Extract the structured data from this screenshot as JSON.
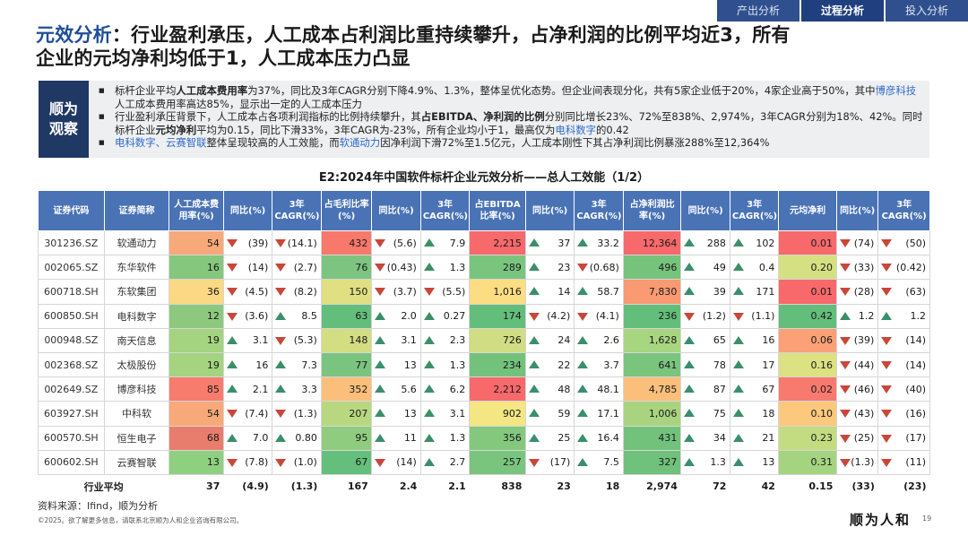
{
  "nav": {
    "tabs": [
      "产出分析",
      "过程分析",
      "投入分析"
    ],
    "active": 1
  },
  "title": {
    "prefix": "元效分析",
    "line1_rest": "：行业盈利承压，人工成本占利润比重持续攀升，占净利润的比例平均近3，所有",
    "line2": "企业的元均净利均低于1，人工成本压力凸显"
  },
  "observation": {
    "label1": "顺为",
    "label2": "观察",
    "b1": {
      "t1": "标杆企业平均",
      "t2": "人工成本费用率",
      "t3": "为37%，同比及3年CAGR分别下降4.9%、1.3%，整体呈优化态势。但企业间表现分化，共有5家企业低于20%，4家企业高于50%，其中",
      "t4": "博彦科技",
      "t5": "人工成本费用率高达85%，显示出一定的人工成本压力"
    },
    "b2": {
      "t1": "行业盈利承压背景下，人工成本占各项利润指标的比例持续攀升，其",
      "t2": "占EBITDA、净利润的比例",
      "t3": "分别同比增长23%、72%至838%、2,974%，3年CAGR分别为18%、42%。同时标杆企业",
      "t4": "元均净利",
      "t5": "平均为0.15，同比下滑33%，3年CAGR为-23%，所有企业均小于1，最高仅为",
      "t6": "电科数字",
      "t7": "的0.42"
    },
    "b3": {
      "t1": "电科数字、云赛智联",
      "t2": "整体呈现较高的人工效能，而",
      "t3": "软通动力",
      "t4": "因净利润下滑72%至1.5亿元，人工成本刚性下其占净利润比例暴涨288%至12,364%"
    }
  },
  "table_title": "E2:2024年中国软件标杆企业元效分析——总人工效能（1/2）",
  "headers": [
    "证券代码",
    "证券简称",
    "人工成本费用率(%)",
    "同比(%)",
    "3年CAGR(%)",
    "占毛利比率(%)",
    "同比(%)",
    "3年CAGR(%)",
    "占EBITDA比率(%)",
    "同比(%)",
    "3年CAGR(%)",
    "占净利润比率(%)",
    "同比(%)",
    "3年CAGR(%)",
    "元均净利",
    "同比(%)",
    "3年CAGR(%)"
  ],
  "rows": [
    {
      "code": "301236.SZ",
      "name": "软通动力",
      "v": [
        "54",
        "(39)",
        "(14.1)",
        "432",
        "(5.6)",
        "7.9",
        "2,215",
        "37",
        "33.2",
        "12,364",
        "288",
        "102",
        "0.01",
        "(74)",
        "(50)"
      ]
    },
    {
      "code": "002065.SZ",
      "name": "东华软件",
      "v": [
        "16",
        "(14)",
        "(2.7)",
        "76",
        "(0.43)",
        "1.3",
        "289",
        "23",
        "(0.68)",
        "496",
        "49",
        "0.4",
        "0.20",
        "(33)",
        "(0.42)"
      ]
    },
    {
      "code": "600718.SH",
      "name": "东软集团",
      "v": [
        "36",
        "(4.5)",
        "(8.2)",
        "150",
        "(3.7)",
        "(5.5)",
        "1,016",
        "14",
        "58.7",
        "7,830",
        "39",
        "171",
        "0.01",
        "(28)",
        "(63)"
      ]
    },
    {
      "code": "600850.SH",
      "name": "电科数字",
      "v": [
        "12",
        "(3.6)",
        "8.5",
        "63",
        "2.0",
        "0.27",
        "174",
        "(4.2)",
        "(4.1)",
        "236",
        "(1.2)",
        "(1.1)",
        "0.42",
        "1.2",
        "1.2"
      ]
    },
    {
      "code": "000948.SZ",
      "name": "南天信息",
      "v": [
        "19",
        "3.1",
        "(5.3)",
        "148",
        "3.1",
        "2.3",
        "726",
        "24",
        "2.6",
        "1,628",
        "65",
        "16",
        "0.06",
        "(39)",
        "(14)"
      ]
    },
    {
      "code": "002368.SZ",
      "name": "太极股份",
      "v": [
        "19",
        "16",
        "7.3",
        "77",
        "13",
        "1.3",
        "234",
        "22",
        "3.7",
        "641",
        "78",
        "17",
        "0.16",
        "(44)",
        "(14)"
      ]
    },
    {
      "code": "002649.SZ",
      "name": "博彦科技",
      "v": [
        "85",
        "2.1",
        "3.3",
        "352",
        "5.6",
        "6.2",
        "2,212",
        "48",
        "48.1",
        "4,785",
        "87",
        "67",
        "0.02",
        "(46)",
        "(40)"
      ]
    },
    {
      "code": "603927.SH",
      "name": "中科软",
      "v": [
        "54",
        "(7.4)",
        "(1.3)",
        "207",
        "13",
        "3.1",
        "902",
        "59",
        "17.1",
        "1,006",
        "75",
        "18",
        "0.10",
        "(43)",
        "(16)"
      ]
    },
    {
      "code": "600570.SH",
      "name": "恒生电子",
      "v": [
        "68",
        "7.0",
        "0.80",
        "95",
        "11",
        "1.3",
        "356",
        "25",
        "16.4",
        "431",
        "34",
        "21",
        "0.23",
        "(25)",
        "(17)"
      ]
    },
    {
      "code": "600602.SH",
      "name": "云赛智联",
      "v": [
        "13",
        "(7.8)",
        "(1.0)",
        "67",
        "(14)",
        "2.7",
        "257",
        "(17)",
        "7.5",
        "327",
        "1.3",
        "13",
        "0.31",
        "(1.3)",
        "(11)"
      ]
    }
  ],
  "average": {
    "label": "行业平均",
    "v": [
      "37",
      "(4.9)",
      "(1.3)",
      "167",
      "2.4",
      "2.1",
      "838",
      "23",
      "18",
      "2,974",
      "72",
      "42",
      "0.15",
      "(33)",
      "(23)"
    ]
  },
  "colors": {
    "c0": [
      "#f8a979",
      "#85c77c",
      "#fbd883",
      "#8cc97e",
      "#a4d47f",
      "#a4d47f",
      "#f87c6d",
      "#f8a979",
      "#e97d6d",
      "#8ed080"
    ],
    "c3": [
      "#f8786b",
      "#7cc480",
      "#e0df81",
      "#63be7b",
      "#d3dd81",
      "#79c57f",
      "#fcbf7b",
      "#b8d880",
      "#8fcc7f",
      "#65bf7c"
    ],
    "c6": [
      "#f8696b",
      "#7ac57e",
      "#fcdd82",
      "#63be7b",
      "#d0dd82",
      "#72c27c",
      "#f8696b",
      "#f3e683",
      "#84c87e",
      "#7ac57e"
    ],
    "c9": [
      "#f8696b",
      "#76c37c",
      "#f99a72",
      "#63be7b",
      "#a8d580",
      "#7ac57e",
      "#fcbf7b",
      "#a9d47f",
      "#72c27c",
      "#70c17c"
    ],
    "c12": [
      "#f8696b",
      "#d4e081",
      "#f8696b",
      "#63be7b",
      "#fba077",
      "#dce182",
      "#f87a6e",
      "#fcc87d",
      "#c3dc82",
      "#a4d47f"
    ]
  },
  "changes_arrows": {
    "cols": [
      1,
      2,
      4,
      5,
      7,
      8,
      10,
      11,
      13,
      14
    ]
  },
  "source": "资料来源：Ifind，顺为分析",
  "copyright": "©2025。欲了解更多信息，请联系北京顺为人和企业咨询有限公司。",
  "brand": "顺为人和",
  "page": "19"
}
